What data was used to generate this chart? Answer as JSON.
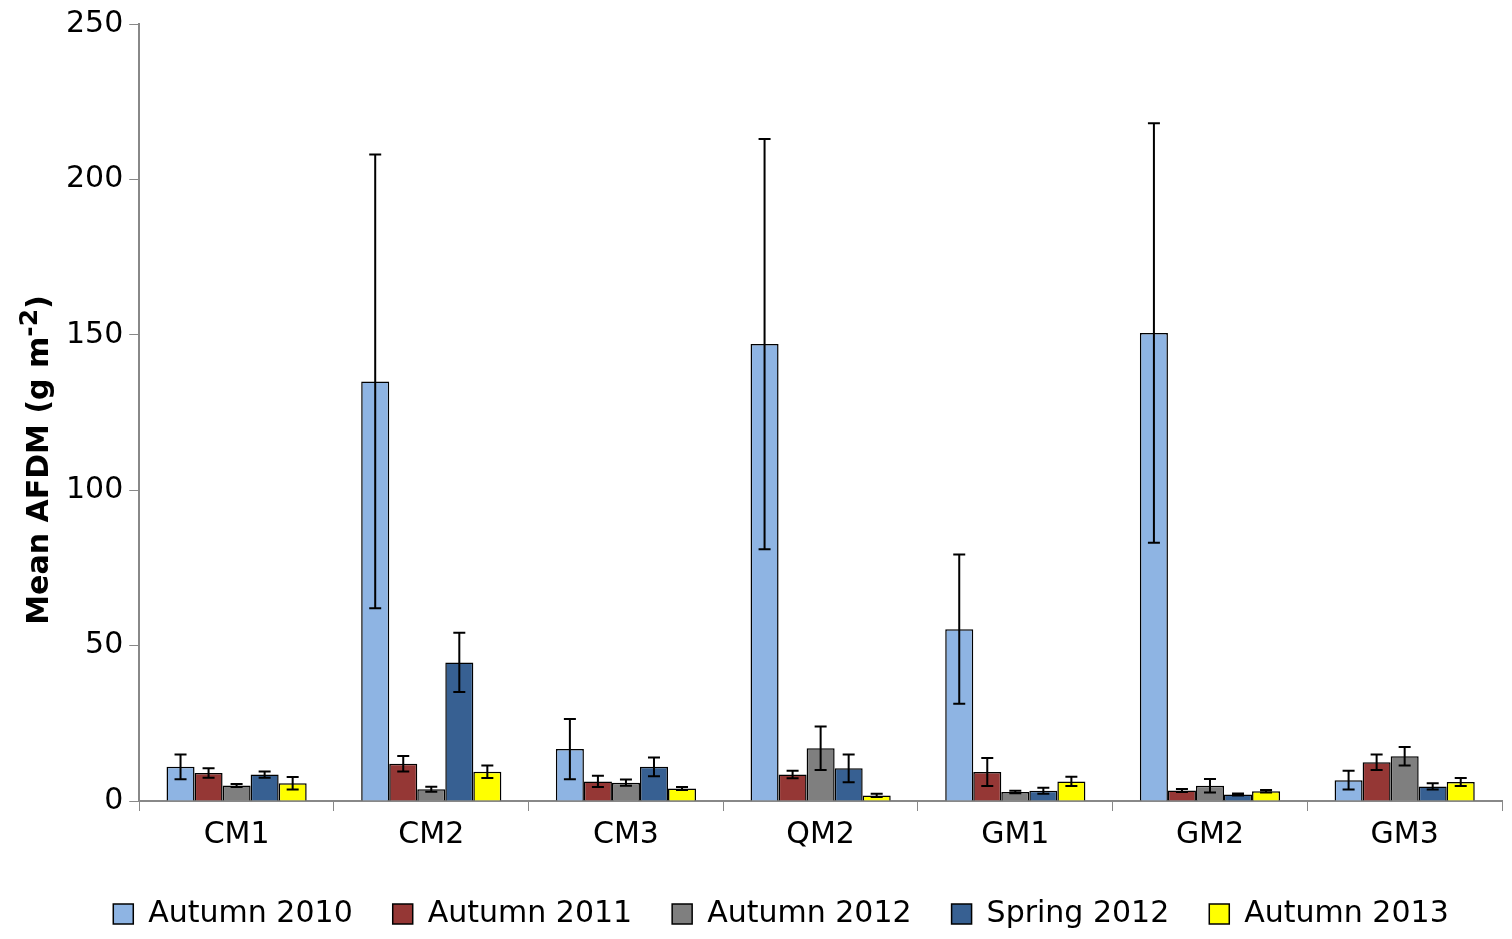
{
  "chart_data": {
    "type": "bar",
    "ylabel": "Mean AFDM (g m$^{-2}$)",
    "categories": [
      "CM1",
      "CM2",
      "CM3",
      "QM2",
      "GM1",
      "GM2",
      "GM3"
    ],
    "series": [
      {
        "name": "Autumn 2010",
        "color": "#8eb4e3",
        "values": [
          11,
          135,
          16.7,
          147,
          55.3,
          150.6,
          6.7
        ],
        "errors": [
          4,
          73,
          9.7,
          66,
          24,
          67.5,
          3
        ]
      },
      {
        "name": "Autumn 2011",
        "color": "#953735",
        "values": [
          9,
          12,
          6.3,
          8.5,
          9.3,
          3.4,
          12.5
        ],
        "errors": [
          1.5,
          2.5,
          1.8,
          1.2,
          4.5,
          0.5,
          2.5
        ]
      },
      {
        "name": "Autumn 2012",
        "color": "#7f7f7f",
        "values": [
          5,
          3.8,
          5.9,
          17,
          2.9,
          4.9,
          14.4
        ],
        "errors": [
          0.5,
          0.8,
          1,
          7,
          0.4,
          2.2,
          3
        ]
      },
      {
        "name": "Spring 2012",
        "color": "#376092",
        "values": [
          8.5,
          44.6,
          11,
          10.5,
          3.3,
          2.1,
          4.7
        ],
        "errors": [
          1,
          9.5,
          3,
          4.5,
          1,
          0.3,
          1
        ]
      },
      {
        "name": "Autumn 2013",
        "color": "#ffff00",
        "values": [
          5.7,
          9.4,
          4,
          1.8,
          6.3,
          3.1,
          6.1
        ],
        "errors": [
          2,
          2,
          0.5,
          0.5,
          1.5,
          0.4,
          1.3
        ]
      }
    ],
    "ylim": [
      0,
      250
    ],
    "yticks": [
      0,
      50,
      100,
      150,
      200,
      250
    ],
    "grid": false,
    "legend": "bottom"
  }
}
